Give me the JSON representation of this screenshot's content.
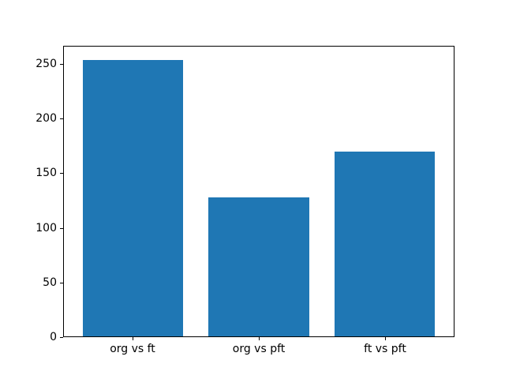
{
  "chart_data": {
    "type": "bar",
    "categories": [
      "org vs ft",
      "org vs pft",
      "ft vs pft"
    ],
    "values": [
      254,
      128,
      170
    ],
    "title": "",
    "xlabel": "",
    "ylabel": "",
    "yticks": [
      0,
      50,
      100,
      150,
      200,
      250
    ],
    "ylim": [
      0,
      266.7
    ],
    "xlim": [
      -0.55,
      2.55
    ],
    "bar_width": 0.8,
    "bar_color": "#1f77b4",
    "spine_color": "#000000",
    "tick_color": "#000000",
    "background_color": "#ffffff",
    "grid": false,
    "legend": null
  }
}
